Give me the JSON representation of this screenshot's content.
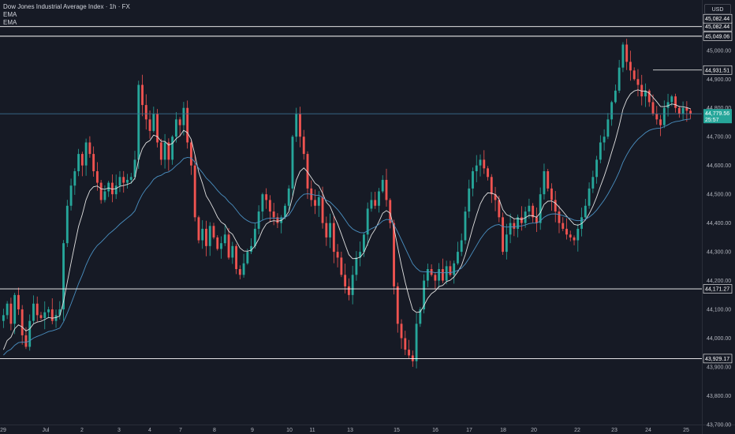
{
  "legend": {
    "title": "Dow Jones Industrial Average Index · 1h · FX",
    "ema1": "EMA",
    "ema2": "EMA"
  },
  "currency": "USD",
  "price_axis": {
    "ticks": [
      "45,000.00",
      "44,900.00",
      "44,800.00",
      "44,700.00",
      "44,600.00",
      "44,500.00",
      "44,400.00",
      "44,300.00",
      "44,200.00",
      "44,100.00",
      "44,000.00",
      "43,900.00",
      "43,800.00",
      "43,700.00"
    ]
  },
  "time_axis": {
    "labels": [
      "29",
      "Jul",
      "2",
      "3",
      "4",
      "7",
      "8",
      "9",
      "10",
      "11",
      "13",
      "15",
      "16",
      "17",
      "18",
      "20",
      "22",
      "23",
      "24",
      "25"
    ]
  },
  "levels": [
    {
      "label": "45,082.44",
      "value": 45082.44
    },
    {
      "label": "45,049.06",
      "value": 45049.06
    },
    {
      "label": "44,171.27",
      "value": 44171.27
    },
    {
      "label": "43,929.17",
      "value": 43929.17
    }
  ],
  "top_label": "45,082.44",
  "high_marker": {
    "label": "44,931.51",
    "value": 44931.51
  },
  "current_price": {
    "label": "44,779.56",
    "countdown": "25:57",
    "value": 44779.56
  },
  "colors": {
    "background": "#161a25",
    "up": "#26a69a",
    "down": "#ef5350",
    "ema_fast": "#e0e0e0",
    "ema_slow": "#4a90c2",
    "level_line": "#ffffff",
    "price_tag": "#26a69a"
  },
  "chart_data": {
    "type": "candlestick",
    "symbol": "Dow Jones Industrial Average Index",
    "timeframe": "1h",
    "ylim": [
      43700,
      45120
    ],
    "x_labels": [
      "29",
      "Jul",
      "2",
      "3",
      "4",
      "7",
      "8",
      "9",
      "10",
      "11",
      "13",
      "15",
      "16",
      "17",
      "18",
      "20",
      "22",
      "23",
      "24",
      "25"
    ],
    "closes": [
      44080,
      44120,
      44050,
      44150,
      44100,
      44010,
      43970,
      44060,
      44120,
      44080,
      44070,
      44090,
      44100,
      44060,
      44080,
      44100,
      44330,
      44460,
      44530,
      44580,
      44640,
      44600,
      44680,
      44640,
      44580,
      44540,
      44480,
      44510,
      44540,
      44500,
      44530,
      44560,
      44540,
      44550,
      44560,
      44620,
      44880,
      44810,
      44760,
      44720,
      44780,
      44680,
      44620,
      44680,
      44620,
      44700,
      44760,
      44740,
      44800,
      44680,
      44600,
      44420,
      44340,
      44380,
      44320,
      44390,
      44350,
      44310,
      44330,
      44360,
      44280,
      44320,
      44240,
      44220,
      44260,
      44300,
      44320,
      44380,
      44440,
      44500,
      44480,
      44440,
      44420,
      44400,
      44420,
      44460,
      44520,
      44700,
      44780,
      44700,
      44640,
      44520,
      44480,
      44460,
      44490,
      44400,
      44350,
      44400,
      44300,
      44280,
      44220,
      44180,
      44150,
      44220,
      44280,
      44300,
      44360,
      44450,
      44480,
      44460,
      44510,
      44550,
      44480,
      44400,
      44180,
      44050,
      44000,
      43960,
      43940,
      43920,
      44050,
      44100,
      44200,
      44240,
      44220,
      44200,
      44240,
      44200,
      44250,
      44220,
      44260,
      44300,
      44340,
      44440,
      44520,
      44580,
      44600,
      44620,
      44590,
      44560,
      44500,
      44480,
      44420,
      44300,
      44360,
      44400,
      44380,
      44420,
      44400,
      44440,
      44460,
      44420,
      44400,
      44500,
      44580,
      44520,
      44480,
      44440,
      44400,
      44380,
      44360,
      44350,
      44340,
      44380,
      44420,
      44460,
      44520,
      44560,
      44620,
      44680,
      44700,
      44760,
      44820,
      44860,
      44940,
      45020,
      44960,
      44930,
      44900,
      44880,
      44840,
      44860,
      44820,
      44780,
      44760,
      44740,
      44800,
      44820,
      44840,
      44800,
      44780,
      44800,
      44790,
      44779.56
    ],
    "ema_periods": [
      "fast",
      "slow"
    ]
  }
}
